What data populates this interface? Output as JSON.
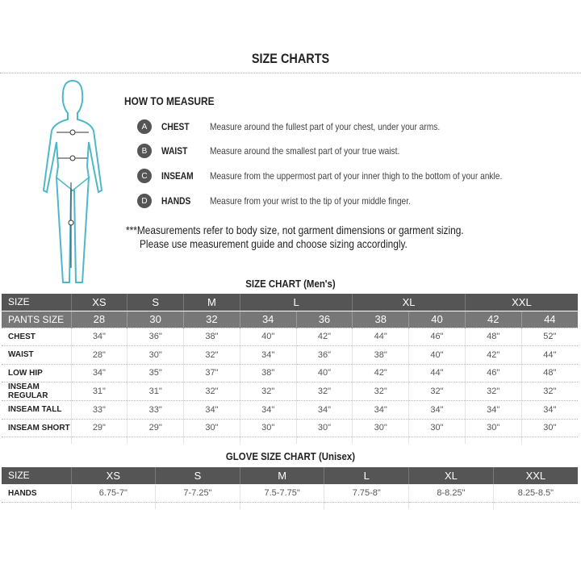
{
  "title": "SIZE CHARTS",
  "how_to": {
    "heading": "HOW TO MEASURE",
    "items": [
      {
        "letter": "A",
        "label": "CHEST",
        "desc": "Measure around the fullest part of your chest, under your arms."
      },
      {
        "letter": "B",
        "label": "WAIST",
        "desc": "Measure around the smallest part of your true waist."
      },
      {
        "letter": "C",
        "label": "INSEAM",
        "desc": "Measure from the uppermost part of your inner thigh to the bottom of your ankle."
      },
      {
        "letter": "D",
        "label": "HANDS",
        "desc": "Measure from your wrist to the tip of your middle finger."
      }
    ],
    "note1": "***Measurements refer to body size, not garment dimensions or garment sizing.",
    "note2": "Please use measurement guide and choose sizing accordingly.",
    "figure_color": "#4fb8c8"
  },
  "mens": {
    "title": "SIZE CHART (Men's)",
    "size_label": "SIZE",
    "sizes": [
      "XS",
      "S",
      "M",
      "L",
      "XL",
      "XXL"
    ],
    "pants_label": "PANTS SIZE",
    "pants": [
      "28",
      "30",
      "32",
      "34",
      "36",
      "38",
      "40",
      "42",
      "44"
    ],
    "rows": [
      {
        "label": "CHEST",
        "values": [
          "34\"",
          "36\"",
          "38\"",
          "40\"",
          "42\"",
          "44\"",
          "46\"",
          "48\"",
          "52\""
        ]
      },
      {
        "label": "WAIST",
        "values": [
          "28\"",
          "30\"",
          "32\"",
          "34\"",
          "36\"",
          "38\"",
          "40\"",
          "42\"",
          "44\""
        ]
      },
      {
        "label": "LOW HIP",
        "values": [
          "34\"",
          "35\"",
          "37\"",
          "38\"",
          "40\"",
          "42\"",
          "44\"",
          "46\"",
          "48\""
        ]
      },
      {
        "label": "INSEAM REGULAR",
        "values": [
          "31\"",
          "31\"",
          "32\"",
          "32\"",
          "32\"",
          "32\"",
          "32\"",
          "32\"",
          "32\""
        ]
      },
      {
        "label": "INSEAM TALL",
        "values": [
          "33\"",
          "33\"",
          "34\"",
          "34\"",
          "34\"",
          "34\"",
          "34\"",
          "34\"",
          "34\""
        ]
      },
      {
        "label": "INSEAM SHORT",
        "values": [
          "29\"",
          "29\"",
          "30\"",
          "30\"",
          "30\"",
          "30\"",
          "30\"",
          "30\"",
          "30\""
        ]
      }
    ]
  },
  "glove": {
    "title": "GLOVE SIZE CHART (Unisex)",
    "size_label": "SIZE",
    "sizes": [
      "XS",
      "S",
      "M",
      "L",
      "XL",
      "XXL"
    ],
    "row": {
      "label": "HANDS",
      "values": [
        "6.75-7\"",
        "7-7.25\"",
        "7.5-7.75\"",
        "7.75-8\"",
        "8-8.25\"",
        "8.25-8.5\""
      ]
    }
  }
}
